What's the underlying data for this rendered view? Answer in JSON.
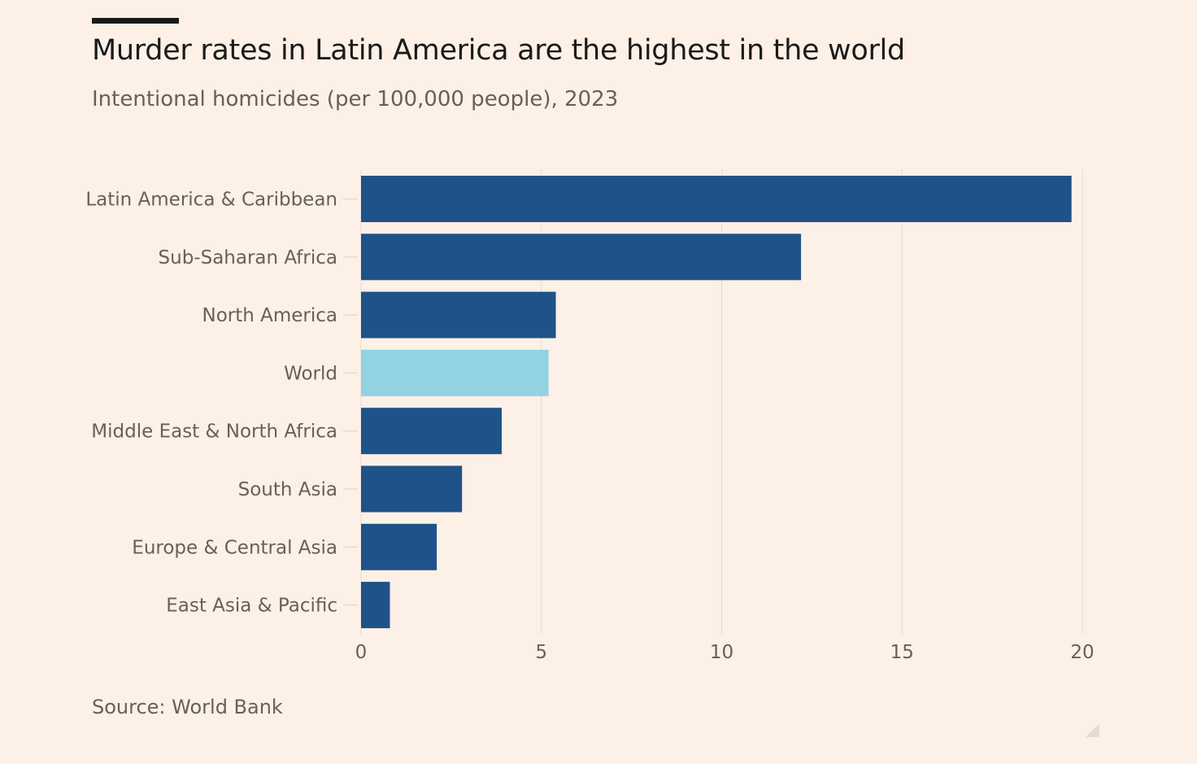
{
  "header": {
    "title": "Murder rates in Latin America are the highest in the world",
    "subtitle": "Intentional homicides (per 100,000 people), 2023"
  },
  "footer": {
    "source": "Source: World Bank"
  },
  "colors": {
    "bar": "#1f5289",
    "highlight": "#92d2e3",
    "grid": "#e6dcd2",
    "tick_text": "#66605c"
  },
  "chart_data": {
    "type": "bar",
    "orientation": "horizontal",
    "title": "Murder rates in Latin America are the highest in the world",
    "subtitle": "Intentional homicides (per 100,000 people), 2023",
    "categories": [
      "Latin America & Caribbean",
      "Sub-Saharan Africa",
      "North America",
      "World",
      "Middle East & North Africa",
      "South Asia",
      "Europe & Central Asia",
      "East Asia & Pacific"
    ],
    "values": [
      19.7,
      12.2,
      5.4,
      5.2,
      3.9,
      2.8,
      2.1,
      0.8
    ],
    "highlight": [
      "World"
    ],
    "xlim": [
      0,
      20
    ],
    "xticks": [
      "0",
      "5",
      "10",
      "15",
      "20"
    ],
    "xlabel": "",
    "ylabel": "",
    "grid": true
  }
}
